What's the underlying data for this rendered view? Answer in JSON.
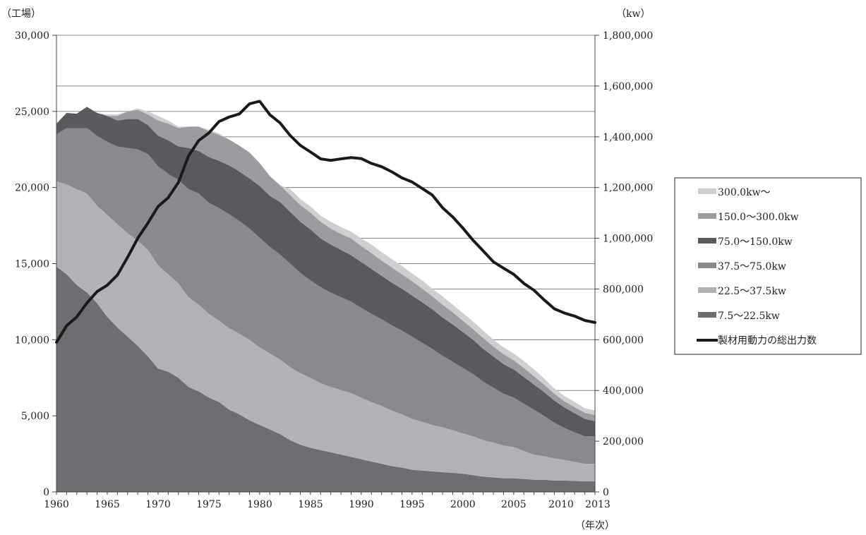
{
  "chart_data": {
    "type": "area",
    "title": "",
    "y_left_label": "（工場）",
    "y_right_label": "（kw）",
    "x_label": "（年次）",
    "x_ticks": [
      "1960",
      "1965",
      "1970",
      "1975",
      "1980",
      "1985",
      "1990",
      "1995",
      "2000",
      "2005",
      "2010",
      "2013"
    ],
    "y_left_ticks": [
      "0",
      "5,000",
      "10,000",
      "15,000",
      "20,000",
      "25,000",
      "30,000"
    ],
    "y_right_ticks": [
      "0",
      "200,000",
      "400,000",
      "600,000",
      "800,000",
      "1,000,000",
      "1,200,000",
      "1,400,000",
      "1,600,000",
      "1,800,000"
    ],
    "y_left_range": [
      0,
      30000
    ],
    "y_right_range": [
      0,
      1800000
    ],
    "x_range": [
      1960,
      2013
    ],
    "grid": true,
    "legend_position": "right",
    "x": [
      1960,
      1961,
      1962,
      1963,
      1964,
      1965,
      1966,
      1967,
      1968,
      1969,
      1970,
      1971,
      1972,
      1973,
      1974,
      1975,
      1976,
      1977,
      1978,
      1979,
      1980,
      1981,
      1982,
      1983,
      1984,
      1985,
      1986,
      1987,
      1988,
      1989,
      1990,
      1991,
      1992,
      1993,
      1994,
      1995,
      1996,
      1997,
      1998,
      1999,
      2000,
      2001,
      2002,
      2003,
      2004,
      2005,
      2006,
      2007,
      2008,
      2009,
      2010,
      2011,
      2012,
      2013
    ],
    "stacked_series": [
      {
        "name": "7.5〜22.5kw",
        "color": "#6d6d72",
        "values": [
          14800,
          14300,
          13600,
          13100,
          12400,
          11500,
          10800,
          10200,
          9600,
          8900,
          8100,
          7900,
          7500,
          6900,
          6600,
          6200,
          5900,
          5400,
          5100,
          4700,
          4400,
          4100,
          3800,
          3400,
          3100,
          2900,
          2750,
          2600,
          2450,
          2300,
          2150,
          2000,
          1850,
          1700,
          1600,
          1450,
          1400,
          1350,
          1300,
          1250,
          1200,
          1100,
          1000,
          950,
          900,
          900,
          850,
          800,
          800,
          750,
          750,
          720,
          700,
          700
        ]
      },
      {
        "name": "22.5〜37.5kw",
        "color": "#b2b2b6",
        "values": [
          5600,
          5900,
          6300,
          6500,
          6400,
          6700,
          6800,
          6800,
          6900,
          7000,
          6800,
          6400,
          6200,
          5900,
          5700,
          5500,
          5350,
          5350,
          5300,
          5300,
          5100,
          5000,
          4900,
          4800,
          4700,
          4600,
          4400,
          4300,
          4250,
          4200,
          4050,
          3900,
          3800,
          3650,
          3500,
          3350,
          3200,
          3050,
          2950,
          2800,
          2650,
          2550,
          2400,
          2300,
          2150,
          2050,
          1850,
          1650,
          1550,
          1450,
          1350,
          1250,
          1150,
          1150
        ]
      },
      {
        "name": "37.5〜75.0kw",
        "color": "#8a8a8e",
        "values": [
          3100,
          3700,
          4000,
          4300,
          4600,
          4800,
          5100,
          5600,
          6000,
          6300,
          6500,
          6600,
          6800,
          7100,
          7300,
          7300,
          7400,
          7500,
          7400,
          7300,
          7200,
          7000,
          6900,
          6800,
          6600,
          6400,
          6300,
          6200,
          6100,
          6000,
          5900,
          5800,
          5700,
          5600,
          5500,
          5400,
          5200,
          5000,
          4700,
          4500,
          4300,
          4100,
          3850,
          3600,
          3400,
          3250,
          3100,
          2950,
          2650,
          2350,
          2100,
          1950,
          1800,
          1800
        ]
      },
      {
        "name": "75.0〜150.0kw",
        "color": "#59595e",
        "values": [
          700,
          1000,
          950,
          1400,
          1500,
          1700,
          1700,
          1900,
          2000,
          1900,
          2000,
          2200,
          2200,
          2700,
          2800,
          3000,
          3100,
          3200,
          3250,
          3300,
          3400,
          3350,
          3450,
          3400,
          3350,
          3350,
          3200,
          3150,
          3100,
          3050,
          3000,
          2950,
          2850,
          2800,
          2750,
          2700,
          2650,
          2600,
          2500,
          2450,
          2350,
          2250,
          2150,
          2050,
          1950,
          1850,
          1750,
          1650,
          1550,
          1450,
          1350,
          1250,
          1150,
          1000
        ]
      },
      {
        "name": "150.0〜300.0kw",
        "color": "#9c9ca0",
        "values": [
          0,
          0,
          0,
          0,
          0,
          0,
          300,
          500,
          600,
          700,
          1000,
          1100,
          1200,
          1400,
          1600,
          1700,
          1700,
          1700,
          1700,
          1700,
          1500,
          1300,
          1100,
          1100,
          1100,
          1100,
          1100,
          1050,
          1050,
          1100,
          1050,
          1050,
          1000,
          1000,
          950,
          950,
          900,
          850,
          850,
          800,
          750,
          700,
          700,
          650,
          650,
          600,
          600,
          550,
          500,
          450,
          400,
          400,
          400,
          400
        ]
      },
      {
        "name": "300.0kw〜",
        "color": "#cfcfd2",
        "values": [
          0,
          0,
          0,
          0,
          0,
          100,
          100,
          0,
          100,
          200,
          300,
          200,
          100,
          0,
          0,
          100,
          100,
          0,
          0,
          0,
          0,
          0,
          0,
          400,
          400,
          400,
          400,
          450,
          450,
          450,
          500,
          550,
          550,
          550,
          550,
          500,
          550,
          500,
          550,
          500,
          500,
          500,
          500,
          450,
          450,
          450,
          450,
          450,
          400,
          350,
          350,
          350,
          300,
          300
        ]
      }
    ],
    "line_series": {
      "name": "製材用動力の総出力数",
      "color": "#1a1a1a",
      "axis": "right",
      "values": [
        590000,
        655000,
        690000,
        745000,
        790000,
        815000,
        855000,
        925000,
        1000000,
        1060000,
        1125000,
        1160000,
        1220000,
        1325000,
        1385000,
        1415000,
        1460000,
        1478000,
        1490000,
        1530000,
        1540000,
        1487000,
        1455000,
        1405000,
        1366000,
        1340000,
        1313000,
        1307000,
        1313000,
        1318000,
        1314000,
        1295000,
        1282000,
        1262000,
        1238000,
        1222000,
        1196000,
        1170000,
        1120000,
        1084000,
        1040000,
        992000,
        950000,
        907000,
        882000,
        858000,
        822000,
        795000,
        757000,
        722000,
        705000,
        693000,
        676000,
        668000
      ]
    },
    "legend": [
      {
        "label": "300.0kw〜",
        "color": "#cfcfd2",
        "kind": "box"
      },
      {
        "label": "150.0〜300.0kw",
        "color": "#9c9ca0",
        "kind": "box"
      },
      {
        "label": "75.0〜150.0kw",
        "color": "#59595e",
        "kind": "box"
      },
      {
        "label": "37.5〜75.0kw",
        "color": "#8a8a8e",
        "kind": "box"
      },
      {
        "label": "22.5〜37.5kw",
        "color": "#b2b2b6",
        "kind": "box"
      },
      {
        "label": "7.5〜22.5kw",
        "color": "#6d6d72",
        "kind": "box"
      },
      {
        "label": "製材用動力の総出力数",
        "color": "#1a1a1a",
        "kind": "line"
      }
    ]
  }
}
